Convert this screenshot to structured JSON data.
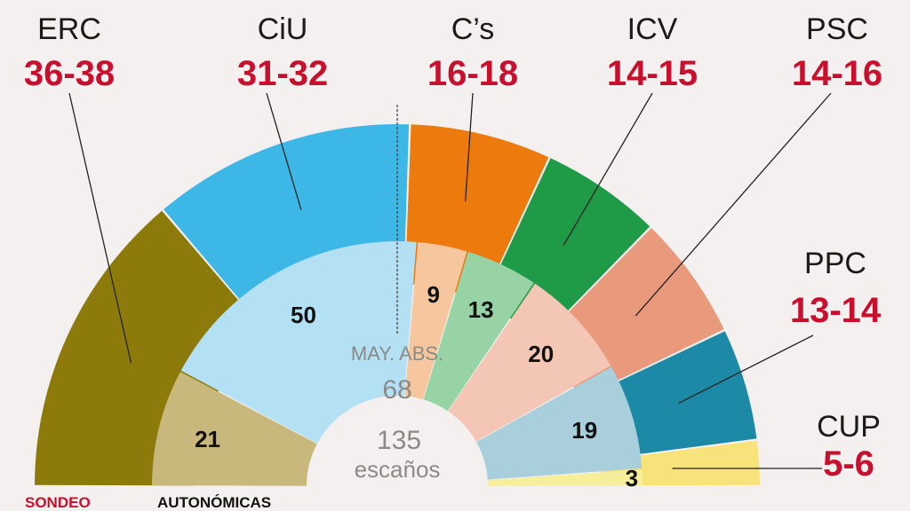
{
  "chart_data": {
    "type": "parliament-semicircle",
    "outer_ring": {
      "label": "SONDEO",
      "parties": [
        {
          "name": "ERC",
          "range": "36-38",
          "seats": 37,
          "color": "#8c7a0a"
        },
        {
          "name": "CiU",
          "range": "31-32",
          "seats": 31.5,
          "color": "#3db8e6"
        },
        {
          "name": "C’s",
          "range": "16-18",
          "seats": 17,
          "color": "#ec7a0c"
        },
        {
          "name": "ICV",
          "range": "14-15",
          "seats": 14.5,
          "color": "#1f9a46"
        },
        {
          "name": "PSC",
          "range": "14-16",
          "seats": 15,
          "color": "#e99a7c"
        },
        {
          "name": "PPC",
          "range": "13-14",
          "seats": 13.5,
          "color": "#1c8aa6"
        },
        {
          "name": "CUP",
          "range": "5-6",
          "seats": 5.5,
          "color": "#f8e27a"
        }
      ]
    },
    "inner_ring": {
      "label": "AUTONÓMICAS",
      "parties": [
        {
          "party": "ERC",
          "seats": 21,
          "color": "#c9b87c"
        },
        {
          "party": "CiU",
          "seats": 50,
          "color": "#b3e0f3"
        },
        {
          "party": "C’s",
          "seats": 9,
          "color": "#f6c79e"
        },
        {
          "party": "ICV",
          "seats": 13,
          "color": "#98d3a6"
        },
        {
          "party": "PSC",
          "seats": 20,
          "color": "#f4c6b6"
        },
        {
          "party": "PPC",
          "seats": 19,
          "color": "#a9cfdc"
        },
        {
          "party": "CUP",
          "seats": 3,
          "color": "#f7ee9a"
        }
      ]
    },
    "majority": {
      "label": "MAY. ABS.",
      "value": 68
    },
    "total": {
      "value": 135,
      "label": "escaños"
    }
  }
}
